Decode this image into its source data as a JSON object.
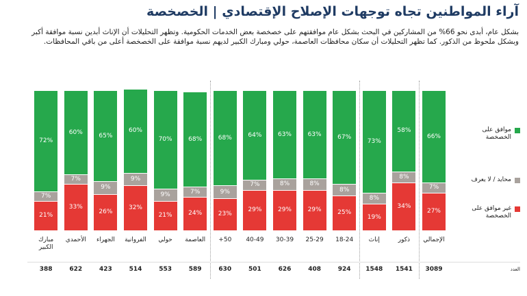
{
  "title": "آراء المواطنين تجاه توجهات الإصلاح الإقتصادي | الخصخصة",
  "description": "بشكل عام، أبدى نحو 66% من المشاركين في البحث بشكل عام موافقتهم على خصخصة بعض الخدمات الحكومية. وتظهر التحليلات أن الإناث أبدين نسبة موافقة أكبر وبشكل ملحوظ من الذكور. كما تظهر التحليلات أن سكان محافظات العاصمة، حولي ومبارك الكبير لديهم نسبة موافقة على الخصخصة أعلى من باقي المحافظات.",
  "chart_data": {
    "type": "bar",
    "stacked": true,
    "categories": [
      "الإجمالي",
      "ذكور",
      "إناث",
      "18-24",
      "25-29",
      "30-39",
      "40-49",
      "50+",
      "العاصمة",
      "حولي",
      "الفروانية",
      "الجهراء",
      "الأحمدي",
      "مبارك الكبير"
    ],
    "series": [
      {
        "name": "غير موافق على الخصخصة",
        "color": "#e53935",
        "values": [
          27,
          34,
          19,
          25,
          29,
          29,
          29,
          23,
          24,
          21,
          32,
          26,
          33,
          21
        ],
        "value_labels": [
          "27%",
          "34%",
          "19%",
          "25%",
          "29%",
          "29%",
          "29%",
          "23%",
          "24%",
          "21%",
          "32%",
          "26%",
          "33%",
          "21%"
        ]
      },
      {
        "name": "محايد / لا يعرف",
        "color": "#a9a29d",
        "values": [
          7,
          8,
          8,
          8,
          8,
          8,
          7,
          9,
          7,
          9,
          9,
          9,
          7,
          7
        ],
        "value_labels": [
          "7%",
          "8%",
          "8%",
          "8%",
          "8%",
          "8%",
          "7%",
          "9%",
          "7%",
          "9%",
          "9%",
          "9%",
          "7%",
          "7%"
        ]
      },
      {
        "name": "موافق على الخصخصة",
        "color": "#26a84c",
        "values": [
          66,
          58,
          73,
          67,
          63,
          63,
          64,
          68,
          68,
          70,
          60,
          65,
          60,
          72
        ],
        "value_labels": [
          "66%",
          "58%",
          "73%",
          "67%",
          "63%",
          "63%",
          "64%",
          "68%",
          "68%",
          "70%",
          "60%",
          "65%",
          "60%",
          "72%"
        ]
      }
    ],
    "count_label": "العدد",
    "counts": [
      3089,
      1541,
      1548,
      924,
      408,
      626,
      501,
      630,
      589,
      553,
      514,
      423,
      622,
      388
    ]
  }
}
